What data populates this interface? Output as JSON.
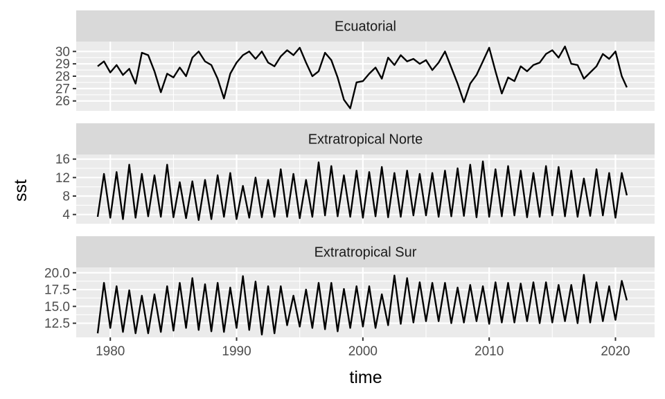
{
  "chart_data": {
    "type": "line",
    "xlabel": "time",
    "ylabel": "sst",
    "xlim": [
      1977.3,
      2023.1
    ],
    "xticks": [
      1980,
      1990,
      2000,
      2010,
      2020
    ],
    "xtick_labels": [
      "1980",
      "1990",
      "2000",
      "2010",
      "2020"
    ],
    "xminor": [
      1985,
      1995,
      2005,
      2015
    ],
    "grid": true,
    "panels": [
      {
        "title": "Ecuatorial",
        "ylim": [
          25.2,
          30.8
        ],
        "yticks": [
          26,
          27,
          28,
          29,
          30
        ],
        "ytick_labels": [
          "26",
          "27",
          "28",
          "29",
          "30"
        ],
        "x": [
          1979.0,
          1979.5,
          1980.0,
          1980.5,
          1981.0,
          1981.5,
          1982.0,
          1982.5,
          1983.0,
          1983.5,
          1984.0,
          1984.5,
          1985.0,
          1985.5,
          1986.0,
          1986.5,
          1987.0,
          1987.5,
          1988.0,
          1988.5,
          1989.0,
          1989.5,
          1990.0,
          1990.5,
          1991.0,
          1991.5,
          1992.0,
          1992.5,
          1993.0,
          1993.5,
          1994.0,
          1994.5,
          1995.0,
          1995.5,
          1996.0,
          1996.5,
          1997.0,
          1997.5,
          1998.0,
          1998.5,
          1999.0,
          1999.5,
          2000.0,
          2000.5,
          2001.0,
          2001.5,
          2002.0,
          2002.5,
          2003.0,
          2003.5,
          2004.0,
          2004.5,
          2005.0,
          2005.5,
          2006.0,
          2006.5,
          2007.0,
          2007.5,
          2008.0,
          2008.5,
          2009.0,
          2009.5,
          2010.0,
          2010.5,
          2011.0,
          2011.5,
          2012.0,
          2012.5,
          2013.0,
          2013.5,
          2014.0,
          2014.5,
          2015.0,
          2015.5,
          2016.0,
          2016.5,
          2017.0,
          2017.5,
          2018.0,
          2018.5,
          2019.0,
          2019.5,
          2020.0,
          2020.5,
          2020.9
        ],
        "values": [
          28.8,
          29.2,
          28.3,
          28.9,
          28.1,
          28.6,
          27.4,
          29.9,
          29.7,
          28.4,
          26.7,
          28.2,
          27.9,
          28.7,
          28.0,
          29.5,
          30.0,
          29.2,
          28.9,
          27.8,
          26.2,
          28.2,
          29.1,
          29.7,
          30.0,
          29.4,
          30.0,
          29.1,
          28.8,
          29.6,
          30.1,
          29.7,
          30.3,
          29.1,
          28.0,
          28.4,
          29.9,
          29.3,
          27.9,
          26.1,
          25.4,
          27.5,
          27.6,
          28.2,
          28.7,
          27.8,
          29.5,
          28.9,
          29.7,
          29.2,
          29.4,
          29.0,
          29.3,
          28.5,
          29.1,
          30.0,
          28.7,
          27.4,
          25.9,
          27.4,
          28.1,
          29.2,
          30.3,
          28.4,
          26.6,
          27.9,
          27.6,
          28.8,
          28.4,
          28.9,
          29.1,
          29.8,
          30.1,
          29.5,
          30.4,
          29.0,
          28.9,
          27.8,
          28.3,
          28.8,
          29.8,
          29.4,
          30.0,
          28.0,
          27.1
        ]
      },
      {
        "title": "Extratropical Norte",
        "ylim": [
          2.0,
          17.0
        ],
        "yticks": [
          4,
          8,
          12,
          16
        ],
        "ytick_labels": [
          "4",
          "8",
          "12",
          "16"
        ],
        "seasonal": true,
        "x_start": 1979.0,
        "x_end": 2020.9,
        "peaks": [
          12.8,
          13.2,
          14.8,
          12.8,
          12.5,
          14.8,
          11.0,
          11.2,
          11.5,
          12.5,
          13.0,
          10.2,
          12.0,
          11.5,
          13.8,
          12.8,
          11.5,
          15.3,
          14.5,
          12.5,
          13.5,
          13.2,
          14.3,
          13.0,
          13.5,
          12.8,
          13.0,
          13.5,
          14.0,
          14.8,
          15.5,
          13.8,
          14.5,
          13.5,
          13.0,
          14.5,
          14.3,
          13.5,
          11.8,
          13.8,
          13.0,
          13.0
        ],
        "troughs": [
          3.5,
          3.3,
          3.0,
          3.3,
          3.6,
          3.5,
          3.4,
          3.2,
          2.8,
          3.0,
          3.5,
          3.0,
          3.3,
          3.4,
          3.5,
          3.5,
          3.2,
          3.5,
          3.8,
          3.6,
          3.5,
          3.3,
          3.6,
          3.4,
          3.5,
          3.8,
          3.8,
          3.5,
          3.6,
          3.7,
          3.4,
          3.5,
          3.6,
          3.8,
          3.4,
          3.5,
          3.8,
          3.6,
          3.5,
          3.7,
          3.8,
          3.3
        ]
      },
      {
        "title": "Extratropical Sur",
        "ylim": [
          10.4,
          20.8
        ],
        "yticks": [
          12.5,
          15.0,
          17.5,
          20.0
        ],
        "ytick_labels": [
          "12.5",
          "15.0",
          "17.5",
          "20.0"
        ],
        "seasonal": true,
        "x_start": 1979.0,
        "x_end": 2020.9,
        "peaks": [
          18.5,
          18.0,
          17.4,
          16.6,
          16.8,
          18.0,
          18.5,
          19.2,
          18.3,
          18.5,
          17.8,
          19.5,
          18.7,
          18.0,
          18.0,
          16.6,
          17.5,
          18.5,
          18.5,
          17.6,
          18.0,
          18.0,
          16.8,
          19.6,
          19.2,
          18.6,
          18.5,
          18.5,
          17.8,
          18.2,
          18.0,
          18.6,
          18.5,
          18.4,
          18.6,
          18.6,
          18.2,
          18.2,
          19.7,
          18.6,
          18.0,
          18.8
        ],
        "troughs": [
          11.0,
          11.8,
          11.2,
          11.0,
          11.0,
          11.2,
          11.4,
          11.8,
          11.5,
          11.3,
          11.2,
          11.8,
          11.5,
          10.8,
          11.0,
          12.2,
          12.0,
          11.8,
          11.6,
          11.3,
          11.8,
          12.0,
          11.8,
          12.2,
          12.4,
          12.6,
          12.8,
          12.8,
          12.5,
          12.6,
          12.8,
          12.4,
          12.6,
          12.6,
          12.8,
          12.5,
          12.6,
          12.8,
          12.5,
          12.6,
          12.8,
          13.0
        ]
      }
    ]
  }
}
